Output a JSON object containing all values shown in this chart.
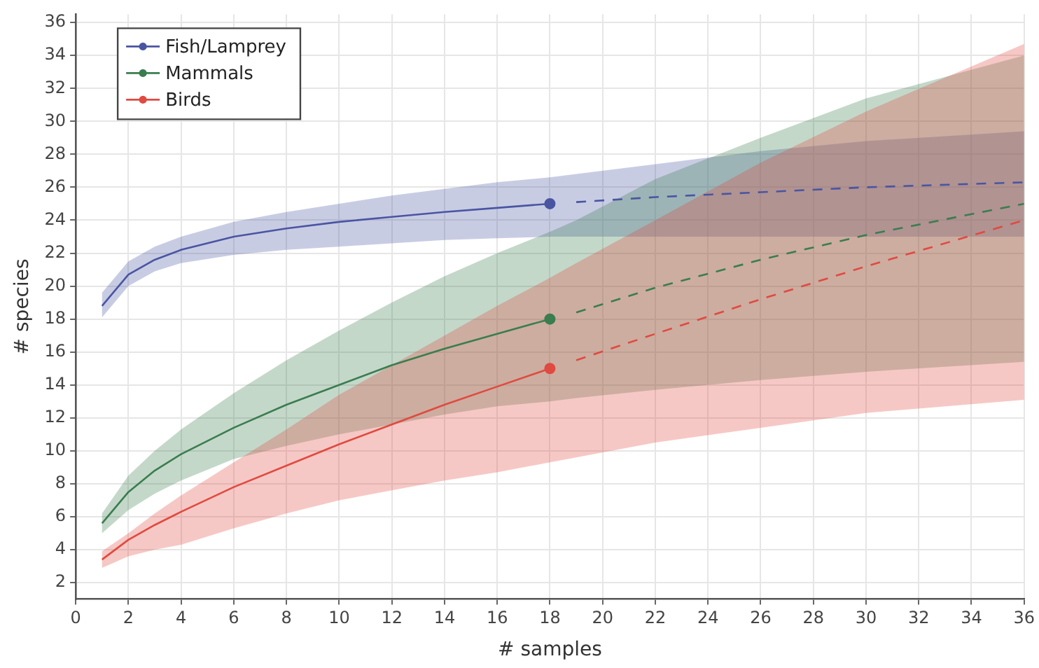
{
  "chart_data": {
    "type": "line",
    "xlabel": "# samples",
    "ylabel": "# species",
    "xlim": [
      0,
      36
    ],
    "xticks": [
      0,
      2,
      4,
      6,
      8,
      10,
      12,
      14,
      16,
      18,
      20,
      22,
      24,
      26,
      28,
      30,
      32,
      34,
      36
    ],
    "ylim": [
      1,
      36.5
    ],
    "yticks": [
      2,
      4,
      6,
      8,
      10,
      12,
      14,
      16,
      18,
      20,
      22,
      24,
      26,
      28,
      30,
      32,
      34,
      36
    ],
    "grid": true,
    "legend": "top left",
    "series": [
      {
        "name": "Fish/Lamprey",
        "color": "#4a55a2",
        "line_style": "solid",
        "marker": "none",
        "x": [
          1,
          2,
          3,
          4,
          6,
          8,
          10,
          12,
          14,
          16,
          18
        ],
        "values": [
          18.8,
          20.7,
          21.6,
          22.2,
          23.0,
          23.5,
          23.9,
          24.2,
          24.5,
          24.75,
          25.0
        ],
        "lower": [
          18.1,
          20.0,
          20.9,
          21.4,
          21.9,
          22.2,
          22.4,
          22.6,
          22.8,
          22.9,
          23.0
        ],
        "upper": [
          19.6,
          21.5,
          22.4,
          23.0,
          23.9,
          24.5,
          25.0,
          25.5,
          25.9,
          26.3,
          26.6
        ]
      },
      {
        "name": "Mammals",
        "color": "#3a7d4f",
        "line_style": "solid",
        "marker": "none",
        "x": [
          1,
          2,
          3,
          4,
          6,
          8,
          10,
          12,
          14,
          16,
          18
        ],
        "values": [
          5.6,
          7.5,
          8.8,
          9.8,
          11.4,
          12.8,
          14.0,
          15.2,
          16.2,
          17.1,
          18.0
        ],
        "lower": [
          5.0,
          6.4,
          7.4,
          8.2,
          9.5,
          10.3,
          11.0,
          11.6,
          12.2,
          12.7,
          13.0
        ],
        "upper": [
          6.2,
          8.5,
          10.0,
          11.3,
          13.5,
          15.5,
          17.3,
          19.0,
          20.6,
          22.0,
          23.3
        ]
      },
      {
        "name": "Birds",
        "color": "#e04a40",
        "line_style": "solid",
        "marker": "none",
        "x": [
          1,
          2,
          3,
          4,
          6,
          8,
          10,
          12,
          14,
          16,
          18
        ],
        "values": [
          3.4,
          4.6,
          5.5,
          6.3,
          7.8,
          9.1,
          10.4,
          11.6,
          12.8,
          13.9,
          15.0
        ],
        "lower": [
          2.9,
          3.6,
          4.0,
          4.3,
          5.3,
          6.2,
          7.0,
          7.6,
          8.2,
          8.7,
          9.3
        ],
        "upper": [
          3.9,
          5.0,
          6.2,
          7.3,
          9.3,
          11.3,
          13.4,
          15.2,
          17.0,
          18.8,
          20.5
        ]
      },
      {
        "color": "#4a55a2",
        "line_style": "dashed",
        "marker": "none",
        "x": [
          18,
          19,
          22,
          26,
          30,
          36
        ],
        "values": [
          null,
          25.1,
          25.4,
          25.7,
          26.0,
          26.3
        ],
        "lower": [
          23.0,
          23.0,
          23.0,
          23.0,
          23.0,
          23.0
        ],
        "upper": [
          26.6,
          26.8,
          27.4,
          28.2,
          28.8,
          29.4
        ]
      },
      {
        "color": "#3a7d4f",
        "line_style": "dashed",
        "marker": "none",
        "x": [
          18,
          19,
          22,
          26,
          30,
          36
        ],
        "values": [
          null,
          18.4,
          19.9,
          21.6,
          23.1,
          25.0
        ],
        "lower": [
          13.0,
          13.2,
          13.7,
          14.3,
          14.8,
          15.4
        ],
        "upper": [
          23.3,
          24.0,
          26.5,
          29.0,
          31.4,
          34.0
        ]
      },
      {
        "color": "#e04a40",
        "line_style": "dashed",
        "marker": "none",
        "x": [
          18,
          19,
          22,
          26,
          30,
          36
        ],
        "values": [
          null,
          15.5,
          17.1,
          19.2,
          21.2,
          24.0
        ],
        "lower": [
          9.3,
          9.6,
          10.5,
          11.4,
          12.3,
          13.1
        ],
        "upper": [
          20.5,
          21.4,
          24.0,
          27.5,
          30.6,
          34.7
        ]
      },
      {
        "type": "scatter",
        "color": "#4a55a2",
        "marker": "circle",
        "x": [
          18
        ],
        "values": [
          25.0
        ]
      },
      {
        "type": "scatter",
        "color": "#3a7d4f",
        "marker": "circle",
        "x": [
          18
        ],
        "values": [
          18.0
        ]
      },
      {
        "type": "scatter",
        "color": "#e04a40",
        "marker": "circle",
        "x": [
          18
        ],
        "values": [
          15.0
        ]
      }
    ]
  }
}
